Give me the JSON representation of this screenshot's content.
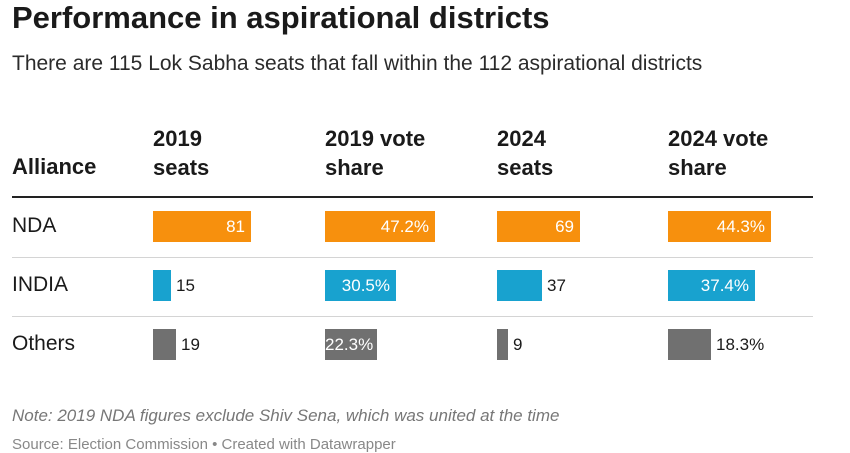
{
  "title": "Performance in aspirational districts",
  "subtitle": "There are 115 Lok Sabha seats that fall within the 112 aspirational districts",
  "note": "Note: 2019 NDA figures exclude Shiv Sena, which was united at the time",
  "source": "Source: Election Commission • Created with Datawrapper",
  "colors": {
    "NDA": "#f7900d",
    "INDIA": "#18a2cf",
    "Others": "#707070"
  },
  "chart_data": {
    "type": "table",
    "row_header": "Alliance",
    "columns": [
      {
        "label_line1": "2019",
        "label_line2": "seats",
        "kind": "seats"
      },
      {
        "label_line1": "2019 vote",
        "label_line2": "share",
        "kind": "share"
      },
      {
        "label_line1": "2024",
        "label_line2": "seats",
        "kind": "seats"
      },
      {
        "label_line1": "2024 vote",
        "label_line2": "share",
        "kind": "share"
      }
    ],
    "rows": [
      {
        "alliance": "NDA",
        "values": [
          81,
          47.2,
          69,
          44.3
        ],
        "labels": [
          "81",
          "47.2%",
          "69",
          "44.3%"
        ]
      },
      {
        "alliance": "INDIA",
        "values": [
          15,
          30.5,
          37,
          37.4
        ],
        "labels": [
          "15",
          "30.5%",
          "37",
          "37.4%"
        ]
      },
      {
        "alliance": "Others",
        "values": [
          19,
          22.3,
          9,
          18.3
        ],
        "labels": [
          "19",
          "22.3%",
          "9",
          "18.3%"
        ]
      }
    ],
    "bar_max": {
      "seats": 81,
      "share": 47.2
    }
  }
}
